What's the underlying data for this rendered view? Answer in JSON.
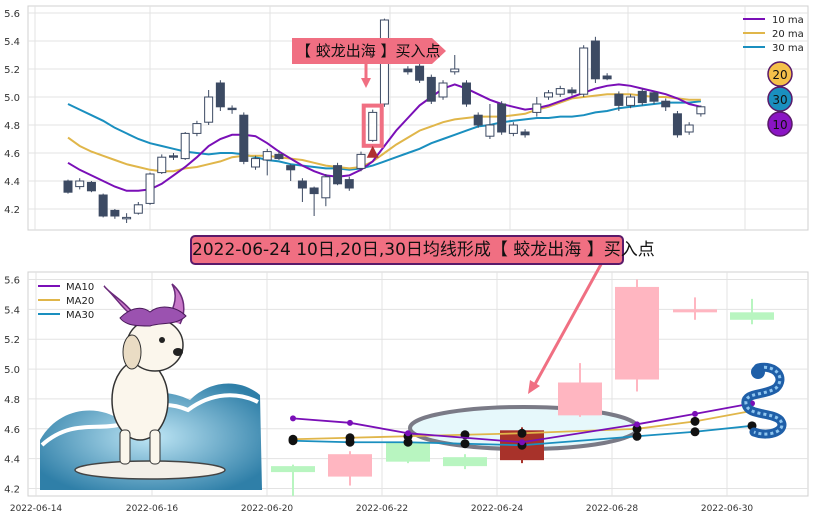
{
  "colors": {
    "up_candle": "#ffffff",
    "down_candle": "#3c4a63",
    "ma10": "#7a0fb7",
    "ma20": "#e0b64a",
    "ma30": "#1a8fbf",
    "signal": "#f06f82",
    "zoom_up": "#ffb6c1",
    "zoom_down": "#b8f5c0",
    "ellipse_fill": "#e6f8fb",
    "ellipse_stroke": "#7a7a86"
  },
  "top": {
    "legend": [
      "10 ma",
      "20 ma",
      "30 ma"
    ],
    "y_ticks": [
      "4.2",
      "4.4",
      "4.6",
      "4.8",
      "5.0",
      "5.2",
      "5.4",
      "5.6"
    ],
    "signal_label": "【 蛟龙出海 】买入点",
    "badges": [
      "20",
      "30",
      "10"
    ]
  },
  "banner": "2022-06-24 10日,20日,30日均线形成【 蛟龙出海 】买入点",
  "bottom": {
    "legend": [
      "MA10",
      "MA20",
      "MA30"
    ],
    "y_ticks": [
      "4.2",
      "4.4",
      "4.6",
      "4.8",
      "5.0",
      "5.2",
      "5.4",
      "5.6"
    ],
    "x_ticks": [
      "2022-06-14",
      "2022-06-16",
      "2022-06-20",
      "2022-06-22",
      "2022-06-24",
      "2022-06-28",
      "2022-06-30"
    ]
  },
  "chart_data": [
    {
      "type": "candlestick",
      "ylim": [
        4.05,
        5.65
      ],
      "signal_index": 26,
      "candles": [
        [
          4.4,
          4.32,
          4.41,
          4.31
        ],
        [
          4.36,
          4.4,
          4.42,
          4.34
        ],
        [
          4.39,
          4.33,
          4.4,
          4.32
        ],
        [
          4.3,
          4.15,
          4.31,
          4.14
        ],
        [
          4.19,
          4.15,
          4.2,
          4.13
        ],
        [
          4.13,
          4.14,
          4.17,
          4.1
        ],
        [
          4.17,
          4.23,
          4.25,
          4.16
        ],
        [
          4.24,
          4.45,
          4.46,
          4.23
        ],
        [
          4.46,
          4.57,
          4.59,
          4.45
        ],
        [
          4.58,
          4.57,
          4.6,
          4.55
        ],
        [
          4.56,
          4.74,
          4.75,
          4.55
        ],
        [
          4.74,
          4.81,
          4.83,
          4.72
        ],
        [
          4.82,
          5.0,
          5.05,
          4.8
        ],
        [
          5.1,
          4.93,
          5.12,
          4.9
        ],
        [
          4.92,
          4.91,
          4.94,
          4.88
        ],
        [
          4.87,
          4.54,
          4.89,
          4.52
        ],
        [
          4.5,
          4.56,
          4.58,
          4.48
        ],
        [
          4.55,
          4.61,
          4.63,
          4.44
        ],
        [
          4.59,
          4.56,
          4.62,
          4.55
        ],
        [
          4.51,
          4.48,
          4.52,
          4.4
        ],
        [
          4.4,
          4.35,
          4.42,
          4.25
        ],
        [
          4.35,
          4.31,
          4.36,
          4.15
        ],
        [
          4.28,
          4.43,
          4.45,
          4.22
        ],
        [
          4.51,
          4.38,
          4.53,
          4.37
        ],
        [
          4.41,
          4.35,
          4.43,
          4.33
        ],
        [
          4.49,
          4.59,
          4.61,
          4.47
        ],
        [
          4.69,
          4.89,
          4.91,
          4.68
        ],
        [
          4.95,
          5.55,
          5.56,
          4.93
        ],
        [
          5.35,
          5.3,
          5.4,
          5.28
        ],
        [
          5.2,
          5.18,
          5.22,
          5.16
        ],
        [
          5.22,
          5.12,
          5.24,
          5.1
        ],
        [
          5.14,
          4.97,
          5.16,
          4.95
        ],
        [
          5.0,
          5.1,
          5.12,
          4.98
        ],
        [
          5.18,
          5.2,
          5.3,
          5.16
        ],
        [
          5.1,
          4.95,
          5.12,
          4.93
        ],
        [
          4.87,
          4.8,
          4.89,
          4.78
        ],
        [
          4.72,
          4.8,
          4.95,
          4.7
        ],
        [
          4.95,
          4.75,
          4.97,
          4.73
        ],
        [
          4.74,
          4.8,
          4.82,
          4.72
        ],
        [
          4.75,
          4.73,
          4.77,
          4.71
        ],
        [
          4.89,
          4.95,
          5.0,
          4.86
        ],
        [
          5.0,
          5.03,
          5.05,
          4.98
        ],
        [
          5.02,
          5.06,
          5.08,
          5.0
        ],
        [
          5.05,
          5.03,
          5.07,
          5.01
        ],
        [
          5.02,
          5.35,
          5.37,
          5.0
        ],
        [
          5.4,
          5.13,
          5.43,
          5.1
        ],
        [
          5.15,
          5.13,
          5.17,
          5.12
        ],
        [
          5.02,
          4.94,
          5.04,
          4.9
        ],
        [
          4.94,
          5.0,
          5.02,
          4.92
        ],
        [
          5.04,
          4.96,
          5.06,
          4.94
        ],
        [
          5.03,
          4.97,
          5.04,
          4.95
        ],
        [
          4.97,
          4.93,
          4.99,
          4.9
        ],
        [
          4.88,
          4.73,
          4.9,
          4.71
        ],
        [
          4.75,
          4.8,
          4.82,
          4.73
        ],
        [
          4.88,
          4.93,
          4.94,
          4.86
        ]
      ],
      "ma10": [
        4.53,
        4.48,
        4.44,
        4.4,
        4.36,
        4.33,
        4.33,
        4.34,
        4.38,
        4.44,
        4.5,
        4.57,
        4.65,
        4.7,
        4.73,
        4.73,
        4.72,
        4.67,
        4.61,
        4.56,
        4.51,
        4.47,
        4.44,
        4.43,
        4.44,
        4.48,
        4.54,
        4.65,
        4.76,
        4.85,
        4.94,
        5.0,
        5.06,
        5.09,
        5.06,
        5.02,
        4.98,
        4.95,
        4.93,
        4.91,
        4.92,
        4.94,
        4.97,
        5.0,
        5.03,
        5.06,
        5.08,
        5.09,
        5.08,
        5.06,
        5.04,
        5.02,
        4.99,
        4.95,
        4.93
      ],
      "ma20": [
        4.71,
        4.65,
        4.61,
        4.58,
        4.55,
        4.52,
        4.5,
        4.48,
        4.47,
        4.47,
        4.49,
        4.5,
        4.52,
        4.54,
        4.57,
        4.58,
        4.58,
        4.58,
        4.57,
        4.56,
        4.55,
        4.53,
        4.51,
        4.5,
        4.49,
        4.5,
        4.54,
        4.6,
        4.66,
        4.71,
        4.76,
        4.79,
        4.82,
        4.84,
        4.85,
        4.86,
        4.86,
        4.86,
        4.87,
        4.88,
        4.91,
        4.93,
        4.96,
        4.99,
        5.0,
        5.01,
        5.02,
        5.02,
        5.02,
        5.01,
        5.0,
        5.0,
        4.99,
        4.98,
        4.98
      ],
      "ma30": [
        4.95,
        4.91,
        4.87,
        4.83,
        4.78,
        4.74,
        4.7,
        4.67,
        4.65,
        4.63,
        4.61,
        4.6,
        4.59,
        4.6,
        4.6,
        4.59,
        4.57,
        4.55,
        4.54,
        4.52,
        4.51,
        4.5,
        4.49,
        4.49,
        4.48,
        4.49,
        4.51,
        4.54,
        4.57,
        4.6,
        4.63,
        4.67,
        4.7,
        4.73,
        4.76,
        4.79,
        4.8,
        4.82,
        4.83,
        4.84,
        4.85,
        4.85,
        4.86,
        4.86,
        4.87,
        4.89,
        4.9,
        4.92,
        4.93,
        4.94,
        4.95,
        4.96,
        4.96,
        4.96,
        4.97
      ]
    },
    {
      "type": "candlestick",
      "ylim": [
        4.15,
        5.65
      ],
      "x": [
        "2022-06-20",
        "2022-06-21",
        "2022-06-22",
        "2022-06-23",
        "2022-06-24",
        "2022-06-27",
        "2022-06-28",
        "2022-06-29",
        "2022-06-30"
      ],
      "candles": [
        [
          4.35,
          4.31,
          4.36,
          4.15
        ],
        [
          4.28,
          4.43,
          4.45,
          4.22
        ],
        [
          4.51,
          4.38,
          4.53,
          4.37
        ],
        [
          4.41,
          4.35,
          4.43,
          4.33
        ],
        [
          4.39,
          4.59,
          4.61,
          4.37
        ],
        [
          4.69,
          4.91,
          5.04,
          4.68
        ],
        [
          4.93,
          5.55,
          5.6,
          4.85
        ],
        [
          5.4,
          5.4,
          5.48,
          5.33
        ],
        [
          5.38,
          5.33,
          5.47,
          5.3
        ]
      ],
      "ma10": [
        4.67,
        4.64,
        4.57,
        null,
        4.51,
        null,
        4.63,
        4.7,
        4.77
      ],
      "ma20": [
        4.53,
        4.54,
        4.55,
        4.56,
        4.57,
        null,
        4.6,
        4.65,
        4.72
      ],
      "ma30": [
        4.52,
        4.51,
        4.51,
        4.5,
        4.49,
        null,
        4.55,
        4.58,
        4.62
      ]
    }
  ]
}
